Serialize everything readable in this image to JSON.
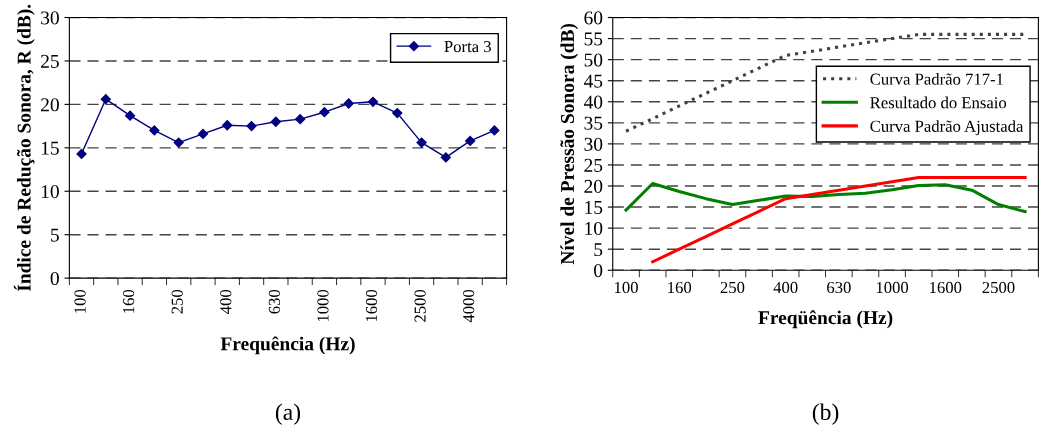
{
  "chart_data": [
    {
      "type": "line",
      "ylabel": "Índice de Redução Sonora, R (dB).",
      "xlabel": "Frequência (Hz)",
      "annotations": [
        "(a)"
      ],
      "categories": [
        "100",
        null,
        "160",
        null,
        "250",
        null,
        "400",
        null,
        "630",
        null,
        "1000",
        null,
        "1600",
        null,
        "2500",
        null,
        "4000",
        null
      ],
      "series": [
        {
          "name": "Porta 3",
          "color": "#000080",
          "values": [
            14.3,
            20.6,
            18.7,
            17.0,
            15.6,
            16.6,
            17.6,
            17.5,
            18.0,
            18.3,
            19.1,
            20.1,
            20.3,
            19.0,
            15.6,
            13.9,
            15.8,
            17.0
          ]
        }
      ],
      "ylim": [
        0,
        30
      ],
      "yticks": [
        0,
        5,
        10,
        15,
        20,
        25,
        30
      ],
      "grid": "y",
      "legend": "top right",
      "marker": "diamond"
    },
    {
      "type": "line",
      "ylabel": "Nível de Pressão Sonora (dB)",
      "xlabel": "Freqüência (Hz)",
      "annotations": [
        "(b)"
      ],
      "categories": [
        "100",
        null,
        "160",
        null,
        "250",
        null,
        "400",
        null,
        "630",
        null,
        "1000",
        null,
        "1600",
        null,
        "2500",
        null
      ],
      "series": [
        {
          "name": "Curva Padrão 717-1",
          "color": "#404040",
          "line_style": "dotted",
          "values": [
            33,
            36,
            39,
            42,
            45,
            48,
            51,
            52,
            53,
            54,
            55,
            56,
            56,
            56,
            56,
            56
          ]
        },
        {
          "name": "Resultado do Ensaio",
          "color": "#008000",
          "values": [
            14.3,
            20.6,
            18.7,
            17.0,
            15.6,
            16.6,
            17.6,
            17.5,
            18.0,
            18.3,
            19.1,
            20.1,
            20.3,
            19.0,
            15.6,
            13.9
          ]
        },
        {
          "name": "Curva Padrão Ajustada",
          "color": "#ff0000",
          "values": [
            null,
            2,
            5,
            8,
            11,
            14,
            17,
            18,
            19,
            20,
            21,
            22,
            22,
            22,
            22,
            22
          ]
        }
      ],
      "ylim": [
        0,
        60
      ],
      "yticks": [
        0,
        5,
        10,
        15,
        20,
        25,
        30,
        35,
        40,
        45,
        50,
        55,
        60
      ],
      "grid": "y",
      "legend": "top right",
      "marker": "none"
    }
  ]
}
